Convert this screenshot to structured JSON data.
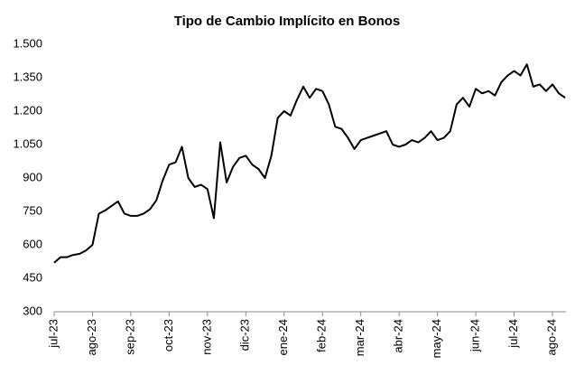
{
  "chart_data": {
    "type": "line",
    "title": "Tipo de Cambio Implícito en Bonos",
    "categories": [
      "jul-23",
      null,
      null,
      null,
      null,
      null,
      "ago-23",
      null,
      null,
      null,
      null,
      null,
      "sep-23",
      null,
      null,
      null,
      null,
      null,
      "oct-23",
      null,
      null,
      null,
      null,
      null,
      "nov-23",
      null,
      null,
      null,
      null,
      null,
      "dic-23",
      null,
      null,
      null,
      null,
      null,
      "ene-24",
      null,
      null,
      null,
      null,
      null,
      "feb-24",
      null,
      null,
      null,
      null,
      null,
      "mar-24",
      null,
      null,
      null,
      null,
      null,
      "abr-24",
      null,
      null,
      null,
      null,
      null,
      "may-24",
      null,
      null,
      null,
      null,
      null,
      "jun-24",
      null,
      null,
      null,
      null,
      null,
      "jul-24",
      null,
      null,
      null,
      null,
      null,
      "ago-24",
      null,
      null
    ],
    "values": [
      520,
      545,
      545,
      555,
      560,
      575,
      600,
      740,
      755,
      775,
      795,
      740,
      730,
      730,
      740,
      760,
      800,
      890,
      960,
      970,
      1040,
      900,
      860,
      870,
      850,
      720,
      1060,
      880,
      950,
      990,
      1000,
      960,
      940,
      900,
      1000,
      1170,
      1200,
      1180,
      1250,
      1310,
      1260,
      1300,
      1290,
      1230,
      1130,
      1120,
      1080,
      1030,
      1070,
      1080,
      1090,
      1100,
      1110,
      1050,
      1040,
      1050,
      1070,
      1060,
      1080,
      1110,
      1070,
      1080,
      1110,
      1230,
      1260,
      1220,
      1300,
      1280,
      1290,
      1270,
      1330,
      1360,
      1380,
      1360,
      1410,
      1310,
      1320,
      1290,
      1320,
      1280,
      1260
    ],
    "color": "#000000",
    "ylim": [
      300,
      1500
    ],
    "yticks": [
      300,
      450,
      600,
      750,
      900,
      {
        "value": 1050,
        "label": "1.050"
      },
      {
        "value": 1200,
        "label": "1.200"
      },
      {
        "value": 1350,
        "label": "1.350"
      },
      {
        "value": 1500,
        "label": "1.500"
      }
    ],
    "grid": false
  }
}
